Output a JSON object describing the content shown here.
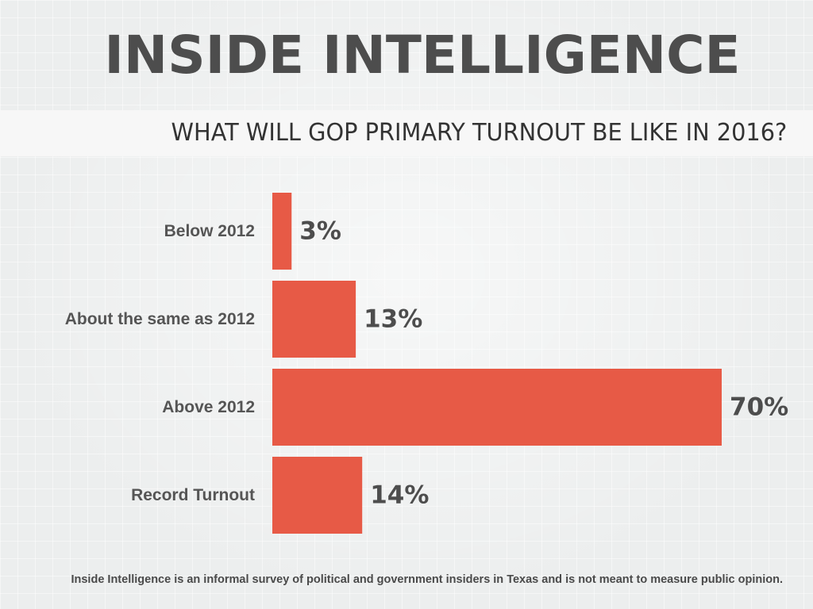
{
  "header": {
    "title": "INSIDE INTELLIGENCE",
    "question": "WHAT WILL GOP PRIMARY TURNOUT BE LIKE IN 2016?"
  },
  "footer": {
    "note": "Inside Intelligence is an informal survey of political and government insiders in Texas and is not meant to measure public opinion."
  },
  "colors": {
    "bar": "#e75a46",
    "label": "#555555",
    "value": "#4d4d4d"
  },
  "chart_data": {
    "type": "bar",
    "orientation": "horizontal",
    "title": "WHAT WILL GOP PRIMARY TURNOUT BE LIKE IN 2016?",
    "categories": [
      "Below 2012",
      "About the same as 2012",
      "Above 2012",
      "Record Turnout"
    ],
    "values": [
      3,
      13,
      70,
      14
    ],
    "value_labels": [
      "3%",
      "13%",
      "70%",
      "14%"
    ],
    "unit": "%",
    "xlim": [
      0,
      70
    ],
    "grid": false,
    "legend": "none"
  }
}
